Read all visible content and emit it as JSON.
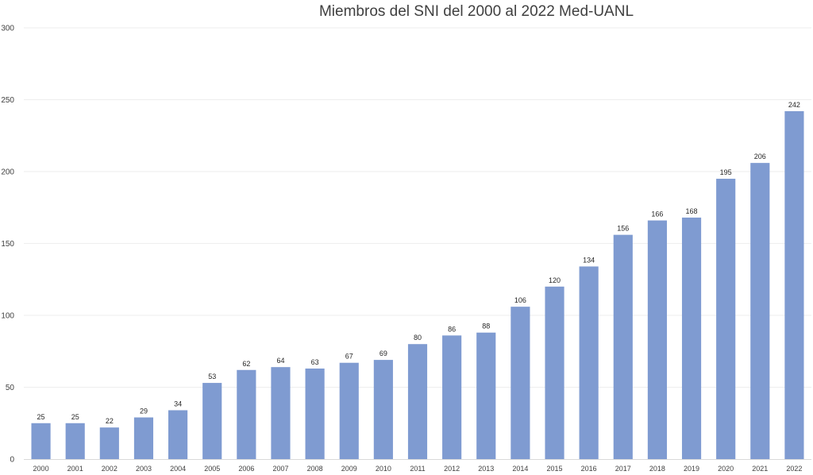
{
  "chart_data": {
    "type": "bar",
    "title": "Miembros del SNI del 2000 al 2022 Med-UANL",
    "xlabel": "",
    "ylabel": "",
    "categories": [
      "2000",
      "2001",
      "2002",
      "2003",
      "2004",
      "2005",
      "2006",
      "2007",
      "2008",
      "2009",
      "2010",
      "2011",
      "2012",
      "2013",
      "2014",
      "2015",
      "2016",
      "2017",
      "2018",
      "2019",
      "2020",
      "2021",
      "2022"
    ],
    "values": [
      25,
      25,
      22,
      29,
      34,
      53,
      62,
      64,
      63,
      67,
      69,
      80,
      86,
      88,
      106,
      120,
      134,
      156,
      166,
      168,
      195,
      206,
      242
    ],
    "ylim": [
      0,
      300
    ],
    "yticks": [
      0,
      50,
      100,
      150,
      200,
      250,
      300
    ],
    "grid": true,
    "legend": "none",
    "bar_color": "#7f9bd1",
    "grid_color": "#eeeeee"
  }
}
